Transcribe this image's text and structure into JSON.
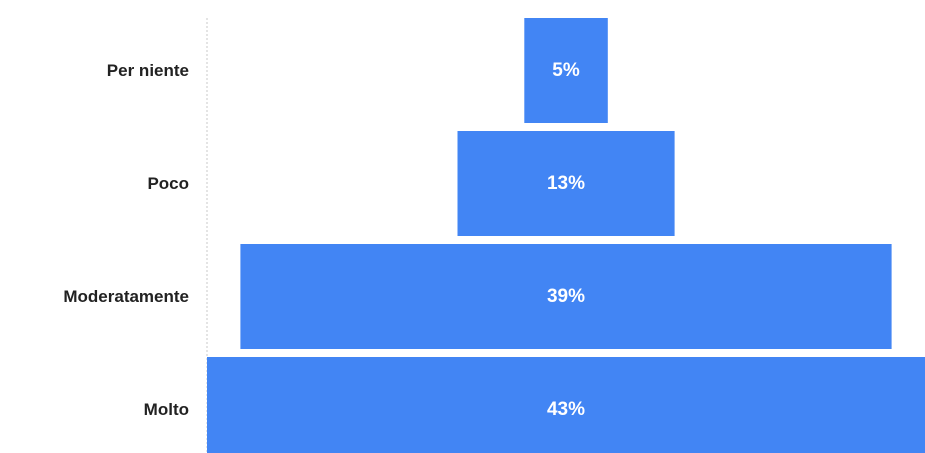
{
  "chart_data": {
    "type": "bar",
    "orientation": "horizontal-funnel",
    "categories": [
      "Per niente",
      "Poco",
      "Moderatamente",
      "Molto"
    ],
    "values": [
      5,
      13,
      39,
      43
    ],
    "value_labels": [
      "5%",
      "13%",
      "39%",
      "43%"
    ],
    "unit": "%",
    "bar_color": "#4285f4",
    "xlim": [
      0,
      43
    ],
    "grid": false,
    "legend": "none"
  }
}
